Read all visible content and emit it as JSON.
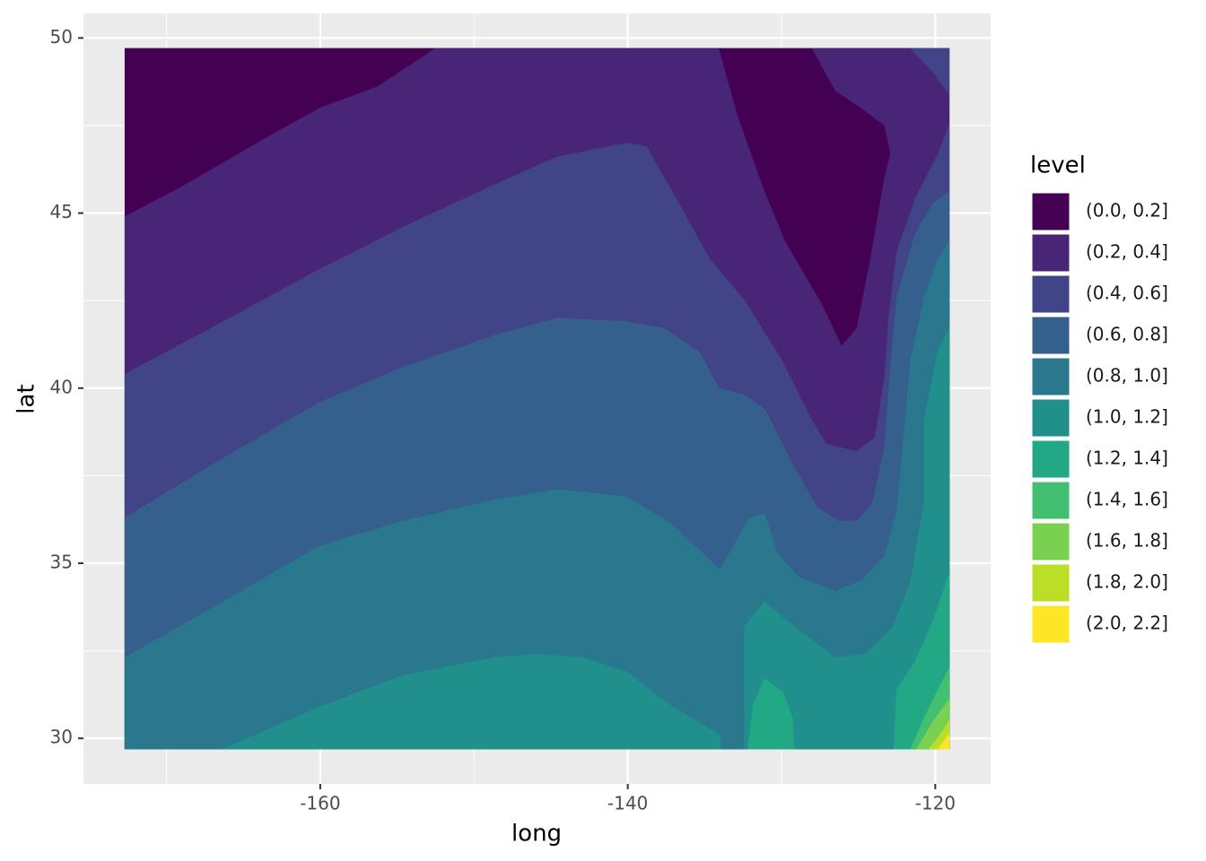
{
  "chart_data": {
    "type": "filled_contour",
    "x_label": "long",
    "y_label": "lat",
    "legend_title": "level",
    "xlim": [
      -175.4,
      -116.4
    ],
    "ylim": [
      28.7,
      50.7
    ],
    "xticks": [
      -160,
      -140,
      -120
    ],
    "yticks": [
      30,
      35,
      40,
      45,
      50
    ],
    "xminor": [
      -170,
      -150,
      -130
    ],
    "yminor": [
      32.5,
      37.5,
      42.5,
      47.5
    ],
    "grid": true,
    "legend_position": "right",
    "series": [
      {
        "name": "(0.0, 0.2]",
        "color": "#440154",
        "regions": [
          {
            "x": [
              -172.7,
              -119.1,
              -119.1,
              -172.7
            ],
            "y": [
              49.7,
              49.7,
              29.7,
              29.7
            ]
          }
        ]
      },
      {
        "name": "(0.2, 0.4]",
        "color": "#482576",
        "regions": [
          {
            "x": [
              -172.7,
              -169.2,
              -163.3,
              -160,
              -156.3,
              -152.5,
              -134.1,
              -132.9,
              -131.2,
              -129.8,
              -127.4,
              -126.1,
              -125.1,
              -124.2,
              -123.3,
              -122.9,
              -123.3,
              -124.8,
              -126.5,
              -128.0,
              -119.1,
              -119.1,
              -172.7
            ],
            "y": [
              44.9,
              45.7,
              47.2,
              48.0,
              48.6,
              49.7,
              49.7,
              47.8,
              45.7,
              44.2,
              42.4,
              41.2,
              41.7,
              43.7,
              46.0,
              46.7,
              47.5,
              48.0,
              48.5,
              49.7,
              49.7,
              29.7,
              29.7
            ]
          }
        ]
      },
      {
        "name": "(0.4, 0.6]",
        "color": "#414487",
        "regions": [
          {
            "x": [
              -172.7,
              -166.3,
              -160,
              -154.6,
              -148.7,
              -144.6,
              -140.1,
              -138.8,
              -137.1,
              -134.7,
              -132.4,
              -130.0,
              -128.3,
              -127.1,
              -125.1,
              -123.9,
              -123.3,
              -123.0,
              -122.5,
              -121.3,
              -119.8,
              -119.1,
              -119.1,
              -172.7
            ],
            "y": [
              40.4,
              41.9,
              43.4,
              44.6,
              45.8,
              46.6,
              47.0,
              46.9,
              45.6,
              43.7,
              42.5,
              40.8,
              39.3,
              38.4,
              38.2,
              38.6,
              40.3,
              42.1,
              43.9,
              45.4,
              46.7,
              47.5,
              29.7,
              29.7
            ]
          },
          {
            "x": [
              -121.6,
              -120.1,
              -119.1,
              -119.1
            ],
            "y": [
              49.7,
              49.0,
              48.4,
              49.7
            ]
          }
        ]
      },
      {
        "name": "(0.6, 0.8]",
        "color": "#35608D",
        "regions": [
          {
            "x": [
              -172.7,
              -166.3,
              -160,
              -154.6,
              -148.7,
              -144.6,
              -140.1,
              -137.6,
              -135.3,
              -134.1,
              -132.4,
              -131.1,
              -129.5,
              -127.7,
              -126.3,
              -125.1,
              -124.1,
              -123.3,
              -123.0,
              -122.5,
              -121.3,
              -120.1,
              -119.1,
              -119.1,
              -172.7
            ],
            "y": [
              36.3,
              38.0,
              39.6,
              40.6,
              41.5,
              42.0,
              41.9,
              41.7,
              41.0,
              40.0,
              39.8,
              39.4,
              38.0,
              36.6,
              36.2,
              36.2,
              36.7,
              38.3,
              40.1,
              42.6,
              44.4,
              45.3,
              45.6,
              29.7,
              29.7
            ]
          }
        ]
      },
      {
        "name": "(0.8, 1.0]",
        "color": "#2A788E",
        "regions": [
          {
            "x": [
              -172.7,
              -166.3,
              -160,
              -154.6,
              -148.7,
              -144.6,
              -140.1,
              -137.1,
              -134.0,
              -132.1,
              -131.1,
              -130.3,
              -128.9,
              -126.5,
              -124.8,
              -123.3,
              -122.5,
              -122.0,
              -121.6,
              -120.7,
              -119.8,
              -119.1,
              -119.1,
              -172.7
            ],
            "y": [
              32.3,
              33.9,
              35.5,
              36.2,
              36.8,
              37.1,
              36.9,
              36.1,
              34.8,
              36.3,
              36.4,
              35.3,
              34.6,
              34.2,
              34.5,
              35.2,
              36.5,
              38.8,
              40.8,
              42.6,
              43.7,
              44.2,
              29.7,
              29.7
            ]
          }
        ]
      },
      {
        "name": "(1.0, 1.2]",
        "color": "#21908C",
        "regions": [
          {
            "x": [
              -166.3,
              -160,
              -154.6,
              -148.7,
              -145.8,
              -142.9,
              -140.1,
              -137.1,
              -134.0,
              -134.0
            ],
            "y": [
              29.7,
              30.9,
              31.8,
              32.3,
              32.4,
              32.3,
              31.9,
              30.9,
              30.1,
              29.7
            ]
          },
          {
            "x": [
              -132.4,
              -132.4,
              -131.1,
              -129.8,
              -128.3,
              -126.5,
              -124.5,
              -122.7,
              -121.6,
              -120.7,
              -120.7,
              -119.8,
              -119.1,
              -119.1
            ],
            "y": [
              29.7,
              33.2,
              33.9,
              33.4,
              32.9,
              32.3,
              32.4,
              33.2,
              34.5,
              36.8,
              39.1,
              41.1,
              41.7,
              29.7
            ]
          }
        ]
      },
      {
        "name": "(1.2, 1.4]",
        "color": "#22A884",
        "regions": [
          {
            "x": [
              -132.2,
              -131.8,
              -131.1,
              -129.9,
              -129.3,
              -129.2
            ],
            "y": [
              29.7,
              31.0,
              31.7,
              31.3,
              30.6,
              29.7
            ]
          },
          {
            "x": [
              -122.7,
              -122.5,
              -121.3,
              -120.1,
              -119.1,
              -119.1
            ],
            "y": [
              29.7,
              31.4,
              32.2,
              33.4,
              34.7,
              29.7
            ]
          }
        ]
      },
      {
        "name": "(1.4, 1.6]",
        "color": "#43BF71",
        "regions": [
          {
            "x": [
              -121.6,
              -120.7,
              -119.8,
              -119.1,
              -119.1
            ],
            "y": [
              29.7,
              30.6,
              31.4,
              32.0,
              29.7
            ]
          }
        ]
      },
      {
        "name": "(1.6, 1.8]",
        "color": "#7AD151",
        "regions": [
          {
            "x": [
              -121.2,
              -120.1,
              -119.1,
              -119.1
            ],
            "y": [
              29.7,
              30.5,
              31.1,
              29.7
            ]
          }
        ]
      },
      {
        "name": "(1.8, 2.0]",
        "color": "#BBDF27",
        "regions": [
          {
            "x": [
              -120.4,
              -119.5,
              -119.1,
              -119.1
            ],
            "y": [
              29.7,
              30.2,
              30.5,
              29.7
            ]
          }
        ]
      },
      {
        "name": "(2.0, 2.2]",
        "color": "#FDE725",
        "regions": [
          {
            "x": [
              -119.8,
              -119.1,
              -119.1
            ],
            "y": [
              29.7,
              30.1,
              29.7
            ]
          }
        ]
      }
    ]
  }
}
